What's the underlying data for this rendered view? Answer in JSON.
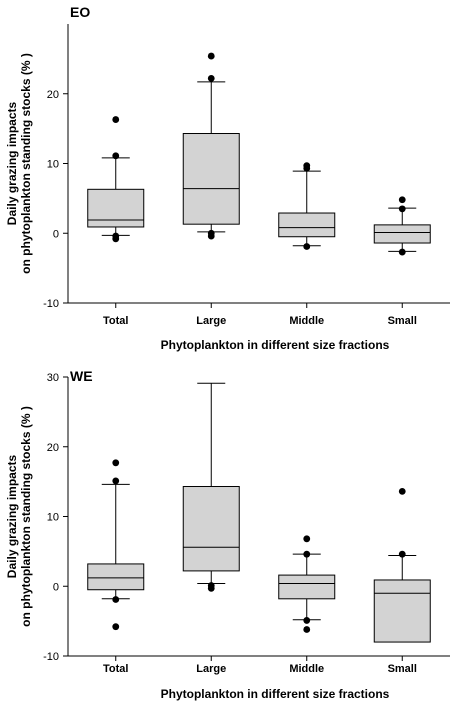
{
  "chart_data": [
    {
      "type": "box",
      "title": "EO",
      "xlabel": "Phytoplankton in different size fractions",
      "ylabel": [
        "Daily grazing impacts",
        "on phytoplankton standing stocks (% )"
      ],
      "ylim": [
        -10,
        30
      ],
      "yticks": [
        -10,
        0,
        10,
        20
      ],
      "grid": false,
      "box_color": "#d3d3d3",
      "categories": [
        "Total",
        "Large",
        "Middle",
        "Small"
      ],
      "boxes": [
        {
          "whisker_low": -0.3,
          "q1": 0.9,
          "median": 1.9,
          "q3": 6.3,
          "whisker_high": 10.8,
          "outliers": [
            16.3,
            11.1,
            -0.4,
            -0.8
          ]
        },
        {
          "whisker_low": 0.2,
          "q1": 1.3,
          "median": 6.4,
          "q3": 14.3,
          "whisker_high": 21.7,
          "outliers": [
            25.4,
            22.2,
            0.0,
            -0.4
          ]
        },
        {
          "whisker_low": -1.8,
          "q1": -0.5,
          "median": 0.8,
          "q3": 2.9,
          "whisker_high": 8.9,
          "outliers": [
            9.7,
            9.3,
            -1.9
          ]
        },
        {
          "whisker_low": -2.6,
          "q1": -1.4,
          "median": 0.1,
          "q3": 1.2,
          "whisker_high": 3.6,
          "outliers": [
            4.8,
            3.5,
            -2.7
          ]
        }
      ]
    },
    {
      "type": "box",
      "title": "WE",
      "xlabel": "Phytoplankton in different size fractions",
      "ylabel": [
        "Daily grazing impacts",
        "on phytoplankton standing stocks (% )"
      ],
      "ylim": [
        -10,
        30
      ],
      "yticks": [
        -10,
        0,
        10,
        20,
        30
      ],
      "grid": false,
      "box_color": "#d3d3d3",
      "categories": [
        "Total",
        "Large",
        "Middle",
        "Small"
      ],
      "boxes": [
        {
          "whisker_low": -1.8,
          "q1": -0.5,
          "median": 1.2,
          "q3": 3.2,
          "whisker_high": 14.6,
          "outliers": [
            17.7,
            15.1,
            -1.9,
            -5.8
          ]
        },
        {
          "whisker_low": 0.4,
          "q1": 2.2,
          "median": 5.6,
          "q3": 14.3,
          "whisker_high": 29.1,
          "outliers": [
            0.1,
            -0.3
          ]
        },
        {
          "whisker_low": -4.8,
          "q1": -1.8,
          "median": 0.4,
          "q3": 1.6,
          "whisker_high": 4.6,
          "outliers": [
            6.8,
            4.6,
            -4.9,
            -6.2
          ]
        },
        {
          "whisker_low": -8.0,
          "q1": -8.0,
          "median": -1.0,
          "q3": 0.9,
          "whisker_high": 4.4,
          "outliers": [
            13.6,
            4.6
          ]
        }
      ]
    }
  ]
}
